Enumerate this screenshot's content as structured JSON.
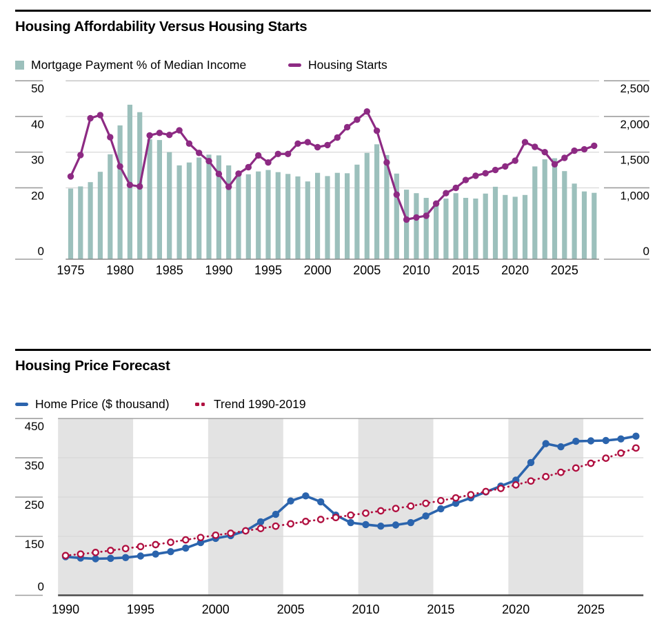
{
  "chart_data": [
    {
      "type": "bar",
      "title": "Housing Affordability Versus Housing Starts",
      "x": [
        1975,
        1976,
        1977,
        1978,
        1979,
        1980,
        1981,
        1982,
        1983,
        1984,
        1985,
        1986,
        1987,
        1988,
        1989,
        1990,
        1991,
        1992,
        1993,
        1994,
        1995,
        1996,
        1997,
        1998,
        1999,
        2000,
        2001,
        2002,
        2003,
        2004,
        2005,
        2006,
        2007,
        2008,
        2009,
        2010,
        2011,
        2012,
        2013,
        2014,
        2015,
        2016,
        2017,
        2018,
        2019,
        2020,
        2021,
        2022,
        2023,
        2024,
        2025,
        2026,
        2027,
        2028
      ],
      "series": [
        {
          "name": "Mortgage Payment % of Median Income",
          "type": "bar",
          "axis": "left",
          "color": "#9CC0BC",
          "values": [
            19.8,
            20.4,
            21.6,
            24.5,
            29.4,
            37.5,
            43.3,
            41.2,
            33.6,
            33.4,
            30.0,
            26.3,
            27.1,
            28.5,
            29.3,
            29.1,
            26.3,
            24.3,
            23.8,
            24.6,
            25.0,
            24.4,
            23.9,
            23.2,
            21.8,
            24.2,
            23.3,
            24.2,
            24.1,
            26.5,
            29.8,
            32.2,
            29.2,
            24.0,
            19.5,
            18.5,
            17.2,
            16.0,
            17.0,
            18.5,
            17.2,
            17.0,
            18.4,
            20.3,
            18.0,
            17.5,
            18.0,
            26.0,
            28.0,
            28.3,
            24.7,
            21.2,
            19.0,
            18.6
          ]
        },
        {
          "name": "Housing Starts",
          "type": "line",
          "axis": "right",
          "color": "#8D2A83",
          "values": [
            1160,
            1460,
            1975,
            2020,
            1710,
            1300,
            1040,
            1020,
            1735,
            1770,
            1742,
            1805,
            1620,
            1490,
            1375,
            1195,
            1015,
            1200,
            1290,
            1455,
            1355,
            1475,
            1475,
            1620,
            1640,
            1570,
            1600,
            1705,
            1850,
            1955,
            2070,
            1800,
            1355,
            905,
            555,
            585,
            610,
            780,
            925,
            1000,
            1110,
            1170,
            1205,
            1250,
            1300,
            1380,
            1640,
            1575,
            1500,
            1330,
            1420,
            1520,
            1540,
            1590
          ]
        }
      ],
      "left_axis": {
        "ticks": [
          "50",
          "40",
          "30",
          "20",
          "0"
        ],
        "values": [
          50,
          40,
          30,
          20,
          0
        ],
        "range": [
          0,
          50
        ]
      },
      "right_axis": {
        "ticks": [
          "2,500",
          "2,000",
          "1,500",
          "1,000",
          "0"
        ],
        "values": [
          2500,
          2000,
          1500,
          1000,
          0
        ],
        "range": [
          0,
          2500
        ]
      },
      "x_ticks": [
        "1975",
        "1980",
        "1985",
        "1990",
        "1995",
        "2000",
        "2005",
        "2010",
        "2015",
        "2020",
        "2025"
      ],
      "grid": "horizontal"
    },
    {
      "type": "line",
      "title": "Housing Price Forecast",
      "x": [
        1990,
        1991,
        1992,
        1993,
        1994,
        1995,
        1996,
        1997,
        1998,
        1999,
        2000,
        2001,
        2002,
        2003,
        2004,
        2005,
        2006,
        2007,
        2008,
        2009,
        2010,
        2011,
        2012,
        2013,
        2014,
        2015,
        2016,
        2017,
        2018,
        2019,
        2020,
        2021,
        2022,
        2023,
        2024,
        2025,
        2026,
        2027,
        2028
      ],
      "series": [
        {
          "name": "Home Price ($ thousand)",
          "type": "line",
          "style": "solid",
          "color": "#2B64AD",
          "values": [
            98,
            95,
            93,
            94,
            96,
            100,
            105,
            111,
            120,
            134,
            145,
            152,
            164,
            187,
            206,
            240,
            253,
            238,
            204,
            185,
            180,
            176,
            179,
            185,
            202,
            220,
            234,
            248,
            263,
            278,
            293,
            338,
            386,
            378,
            392,
            393,
            394,
            398,
            405
          ]
        },
        {
          "name": "Trend 1990-2019",
          "type": "line",
          "style": "dotted",
          "color": "#B01040",
          "values": [
            101,
            105,
            109,
            114,
            119,
            124,
            129,
            135,
            141,
            147,
            153,
            158,
            164,
            170,
            176,
            182,
            188,
            193,
            198,
            204,
            209,
            215,
            221,
            227,
            234,
            241,
            248,
            256,
            264,
            272,
            281,
            291,
            302,
            313,
            324,
            336,
            349,
            362,
            375
          ]
        }
      ],
      "left_axis": {
        "ticks": [
          "450",
          "350",
          "250",
          "150",
          "0"
        ],
        "values": [
          450,
          350,
          250,
          150,
          0
        ],
        "range": [
          0,
          450
        ]
      },
      "x_ticks": [
        "1990",
        "1995",
        "2000",
        "2005",
        "2010",
        "2015",
        "2020",
        "2025"
      ],
      "shaded_bands": [
        [
          1989.5,
          1994.5
        ],
        [
          1999.5,
          2004.5
        ],
        [
          2009.5,
          2014.5
        ],
        [
          2019.5,
          2024.5
        ]
      ],
      "band_color": "#E3E3E3",
      "grid": "horizontal"
    }
  ],
  "style_colors": {
    "bar_teal": "#9CC0BC",
    "starts_purple": "#8D2A83",
    "price_blue": "#2B64AD",
    "trend_red": "#B01040",
    "band_gray": "#E3E3E3",
    "gridline": "#D8D8D8"
  }
}
